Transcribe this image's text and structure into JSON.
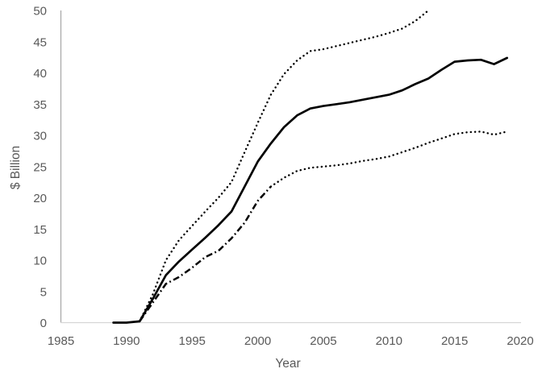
{
  "chart_data": {
    "type": "line",
    "title": "",
    "xlabel": "Year",
    "ylabel": "$ Billion",
    "xlim": [
      1985,
      2020
    ],
    "ylim": [
      0,
      50
    ],
    "x_ticks": [
      1985,
      1990,
      1995,
      2000,
      2005,
      2010,
      2015,
      2020
    ],
    "y_ticks": [
      0,
      5,
      10,
      15,
      20,
      25,
      30,
      35,
      40,
      45,
      50
    ],
    "grid": "off",
    "legend": "none",
    "colors": {
      "series_line": "#000000",
      "tick_label": "#595959",
      "y_axis_line": "#a6a6a6",
      "x_axis_line": "#d6d6d6",
      "background": "#ffffff"
    },
    "series": [
      {
        "name": "upper-dotted-line",
        "line_style": "dotted",
        "years": [
          1991,
          1992,
          1993,
          1994,
          1995,
          1996,
          1997,
          1998,
          1999,
          2000,
          2001,
          2002,
          2003,
          2004,
          2005,
          2006,
          2007,
          2008,
          2009,
          2010,
          2011,
          2012,
          2013
        ],
        "values": [
          0.2,
          4.5,
          10.0,
          13.2,
          15.5,
          17.8,
          20.0,
          22.5,
          27.3,
          32.0,
          36.5,
          39.8,
          42.0,
          43.5,
          43.8,
          44.3,
          44.8,
          45.3,
          45.8,
          46.4,
          47.1,
          48.3,
          50.0
        ]
      },
      {
        "name": "central-solid-line",
        "line_style": "solid",
        "years": [
          1989,
          1990,
          1991,
          1992,
          1993,
          1994,
          1995,
          1996,
          1997,
          1998,
          1999,
          2000,
          2001,
          2002,
          2003,
          2004,
          2005,
          2006,
          2007,
          2008,
          2009,
          2010,
          2011,
          2012,
          2013,
          2014,
          2015,
          2016,
          2017,
          2018,
          2019
        ],
        "values": [
          0,
          0,
          0.2,
          3.8,
          7.6,
          9.8,
          11.7,
          13.6,
          15.6,
          17.8,
          21.8,
          25.8,
          28.7,
          31.3,
          33.2,
          34.3,
          34.7,
          35.0,
          35.3,
          35.7,
          36.1,
          36.5,
          37.2,
          38.2,
          39.1,
          40.5,
          41.8,
          42.0,
          42.1,
          41.4,
          42.4
        ]
      },
      {
        "name": "lower-dash-dot-line",
        "line_style": "dash-dot",
        "years": [
          1991,
          1992,
          1993,
          1994,
          1995,
          1996,
          1997,
          1998,
          1999,
          2000,
          2001
        ],
        "values": [
          0.2,
          3.2,
          6.2,
          7.3,
          8.8,
          10.5,
          11.5,
          13.5,
          16.0,
          19.5,
          21.8
        ]
      },
      {
        "name": "lower-dotted-line",
        "line_style": "dotted",
        "years": [
          2001,
          2002,
          2003,
          2004,
          2005,
          2006,
          2007,
          2008,
          2009,
          2010,
          2011,
          2012,
          2013,
          2014,
          2015,
          2016,
          2017,
          2018,
          2019
        ],
        "values": [
          21.8,
          23.2,
          24.3,
          24.8,
          25.0,
          25.2,
          25.5,
          25.9,
          26.2,
          26.6,
          27.3,
          28.0,
          28.8,
          29.5,
          30.2,
          30.5,
          30.6,
          30.1,
          30.6
        ]
      }
    ]
  }
}
